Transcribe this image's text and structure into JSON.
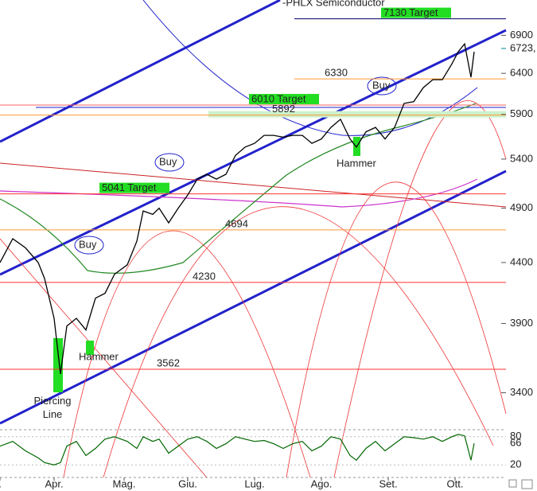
{
  "chart_data": {
    "type": "line",
    "title": "-PHLX Semiconductor",
    "log_scale": true,
    "color": "#000000",
    "xlim": [
      0,
      160
    ],
    "xticks": [
      {
        "value": 0,
        "label": "."
      },
      {
        "value": 17,
        "label": "Apr."
      },
      {
        "value": 39,
        "label": "Mag."
      },
      {
        "value": 59,
        "label": "Giu."
      },
      {
        "value": 80,
        "label": "Lug."
      },
      {
        "value": 101,
        "label": "Ago."
      },
      {
        "value": 122,
        "label": "Set."
      },
      {
        "value": 143,
        "label": "Ott."
      }
    ],
    "ylim": [
      3200,
      7400
    ],
    "yticks": [
      3400,
      3900,
      4400,
      4900,
      5400,
      5900,
      6400,
      6900
    ],
    "x": [
      0,
      4,
      8,
      12,
      14,
      17,
      19,
      21,
      24,
      27,
      30,
      33,
      36,
      40,
      43,
      45,
      48,
      50,
      53,
      56,
      59,
      62,
      65,
      68,
      71,
      74,
      77,
      80,
      83,
      86,
      89,
      92,
      95,
      98,
      101,
      104,
      107,
      110,
      112,
      115,
      118,
      121,
      124,
      127,
      130,
      133,
      136,
      139,
      142,
      144,
      146,
      148,
      149
    ],
    "values": [
      4400,
      4612,
      4530,
      4400,
      4263,
      3940,
      3529,
      3880,
      3940,
      3850,
      4100,
      4140,
      4300,
      4380,
      4590,
      4873,
      4840,
      4900,
      4760,
      4900,
      5030,
      5190,
      5240,
      5190,
      5240,
      5440,
      5530,
      5572,
      5660,
      5660,
      5640,
      5660,
      5660,
      5572,
      5620,
      5750,
      5843,
      5620,
      5530,
      5700,
      5750,
      5620,
      5750,
      6030,
      6050,
      6220,
      6320,
      6320,
      6520,
      6680,
      6785,
      6350,
      6680
    ],
    "last_price": {
      "value": 6723,
      "label": "6723,",
      "color": "#008899"
    },
    "levels": [
      {
        "value": 7130,
        "label": "7130 Target",
        "color": "#000066",
        "highlight": "#22dd22"
      },
      {
        "value": 6330,
        "label": "6330",
        "color": "#ff9933"
      },
      {
        "value": 6010,
        "label": "6010 Target",
        "color": "#ff6666",
        "highlight": "#22dd22"
      },
      {
        "value": 5892,
        "label": "5892",
        "color": "#ff9933"
      },
      {
        "value": 5041,
        "label": "5041 Target",
        "color": "#ff3333",
        "highlight": "#22dd22"
      },
      {
        "value": 4694,
        "label": "4694",
        "color": "#ff9933"
      },
      {
        "value": 4230,
        "label": "4230",
        "color": "#ff3333"
      },
      {
        "value": 3562,
        "label": "3562",
        "color": "#ff3333"
      }
    ],
    "annotations": [
      "Buy",
      "Buy",
      "Buy",
      "Hammer",
      "Hammer",
      "Piercing Line"
    ],
    "oscillator": {
      "type": "line",
      "color": "#006600",
      "ylim": [
        0,
        100
      ],
      "yticks": [
        20,
        80
      ],
      "values": [
        60,
        70,
        50,
        35,
        25,
        20,
        25,
        60,
        70,
        40,
        55,
        75,
        80,
        70,
        55,
        80,
        70,
        75,
        45,
        60,
        75,
        80,
        70,
        55,
        65,
        80,
        75,
        70,
        72,
        65,
        55,
        65,
        70,
        50,
        60,
        80,
        75,
        40,
        30,
        55,
        70,
        50,
        65,
        80,
        78,
        75,
        80,
        70,
        80,
        85,
        82,
        30,
        66
      ]
    }
  }
}
